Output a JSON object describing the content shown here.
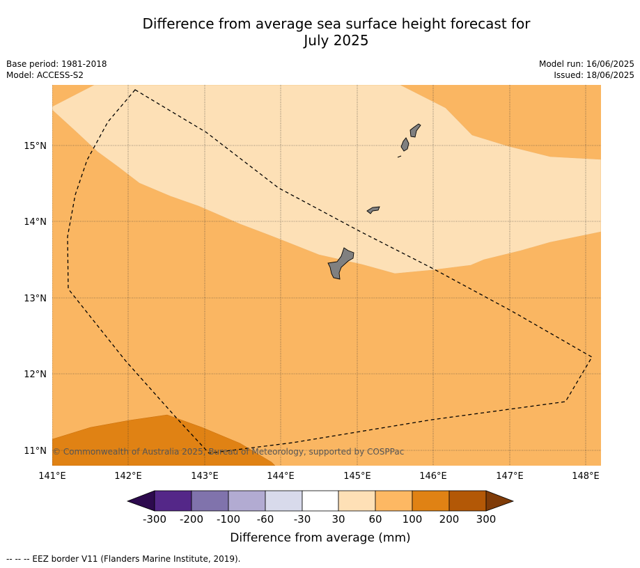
{
  "title_line1": "Difference from average sea surface height forecast for",
  "title_line2": "July 2025",
  "meta_left": {
    "base_period": "Base period: 1981-2018",
    "model": "Model: ACCESS-S2"
  },
  "meta_right": {
    "model_run": "Model run: 16/06/2025",
    "issued": "Issued: 18/06/2025"
  },
  "map": {
    "lat_labels": [
      "15°N",
      "14°N",
      "13°N",
      "12°N",
      "11°N"
    ],
    "lon_labels": [
      "141°E",
      "142°E",
      "143°E",
      "144°E",
      "145°E",
      "146°E",
      "147°E",
      "148°E"
    ],
    "copyright": "© Commonwealth of Australia 2025, Bureau of Meteorology, supported by COSPPac",
    "features": [
      "Guam",
      "Rota",
      "Tinian",
      "Saipan",
      "EEZ border"
    ]
  },
  "colorbar": {
    "label": "Difference from average (mm)",
    "ticks": [
      "-300",
      "-200",
      "-100",
      "-60",
      "-30",
      "30",
      "60",
      "100",
      "200",
      "300"
    ],
    "colors": [
      "#2d0a4e",
      "#542788",
      "#8073ac",
      "#b2abd2",
      "#d8daeb",
      "#ffffff",
      "#fee0b6",
      "#fdb863",
      "#e08214",
      "#b35806",
      "#7f3b08"
    ]
  },
  "footnote": "--  --  -- EEZ border V11 (Flanders Marine Institute, 2019)."
}
